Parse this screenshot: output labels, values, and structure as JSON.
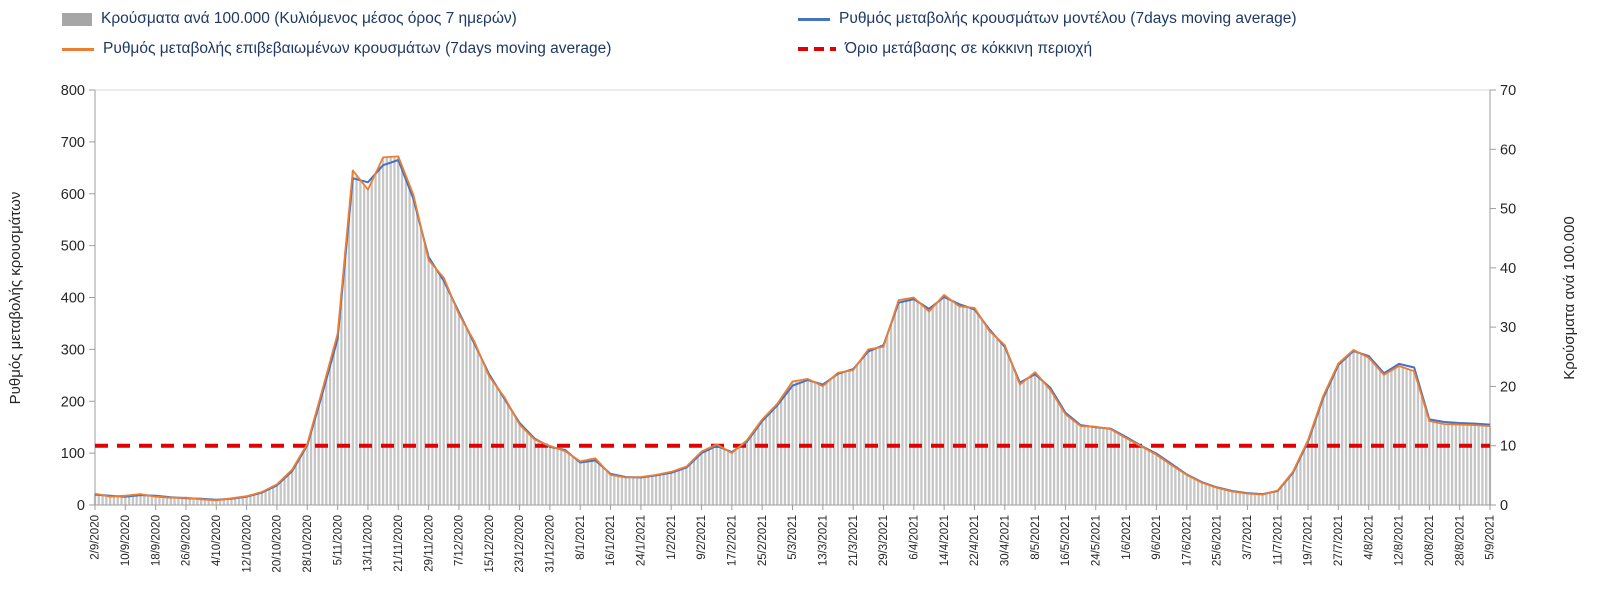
{
  "legend": {
    "items": [
      {
        "label": "Κρούσματα ανά 100.000 (Κυλιόμενος μέσος όρος 7 ημερών)",
        "type": "bar",
        "color": "#a6a6a6"
      },
      {
        "label": "Ρυθμός μεταβολής κρουσμάτων μοντέλου (7days moving average)",
        "type": "line",
        "color": "#4472C4"
      },
      {
        "label": "Ρυθμός μεταβολής επιβεβαιωμένων κρουσμάτων (7days moving average)",
        "type": "line",
        "color": "#ED7D31"
      },
      {
        "label": "Όριο μετάβασης σε κόκκινη περιοχή",
        "type": "dashed-line",
        "color": "#E00000"
      }
    ]
  },
  "chart_data": {
    "type": "combo-bar-line",
    "title": "",
    "left_axis": {
      "label": "Ρυθμός μεταβολής κρουσμάτων",
      "min": 0,
      "max": 800,
      "step": 100
    },
    "right_axis": {
      "label": "Κρούσματα ανά 100.000",
      "min": 0,
      "max": 70,
      "step": 10
    },
    "grid": false,
    "legend_position": "top",
    "x_tick_interval_days": 8,
    "total_days": 368,
    "sample_step_days": 4,
    "x_tick_labels": [
      "2/9/2020",
      "10/9/2020",
      "18/9/2020",
      "26/9/2020",
      "4/10/2020",
      "12/10/2020",
      "20/10/2020",
      "28/10/2020",
      "5/11/2020",
      "13/11/2020",
      "21/11/2020",
      "29/11/2020",
      "7/12/2020",
      "15/12/2020",
      "23/12/2020",
      "31/12/2020",
      "8/1/2021",
      "16/1/2021",
      "24/1/2021",
      "1/2/2021",
      "9/2/2021",
      "17/2/2021",
      "25/2/2021",
      "5/3/2021",
      "13/3/2021",
      "21/3/2021",
      "29/3/2021",
      "6/4/2021",
      "14/4/2021",
      "22/4/2021",
      "30/4/2021",
      "8/5/2021",
      "16/5/2021",
      "24/5/2021",
      "1/6/2021",
      "9/6/2021",
      "17/6/2021",
      "25/6/2021",
      "3/7/2021",
      "11/7/2021",
      "19/7/2021",
      "27/7/2021",
      "4/8/2021",
      "12/8/2021",
      "20/8/2021",
      "28/8/2021",
      "5/9/2021"
    ],
    "threshold": {
      "label": "Όριο μετάβασης σε κόκκινη περιοχή",
      "value_right_axis": 10,
      "value_left_axis": 114,
      "color": "#E00000"
    },
    "series": [
      {
        "name": "Κρούσματα ανά 100.000 (Κυλιόμενος μέσος όρος 7 ημερών)",
        "type": "bar",
        "axis": "right",
        "color": "#c6c6c6",
        "values": [
          1.9,
          1.4,
          1.6,
          1.8,
          1.4,
          1.2,
          1.2,
          1.0,
          0.8,
          1.1,
          1.5,
          2.2,
          3.5,
          6.0,
          10.3,
          19.4,
          28.9,
          56.4,
          53.2,
          58.6,
          58.8,
          52.3,
          41.3,
          38.3,
          32.2,
          27.7,
          21.7,
          18.2,
          13.6,
          11.0,
          10.0,
          9.1,
          7.4,
          7.9,
          5.1,
          4.6,
          4.7,
          5.1,
          5.6,
          6.5,
          9.0,
          10.2,
          8.8,
          10.9,
          14.4,
          17.1,
          20.8,
          21.3,
          20.0,
          22.3,
          22.8,
          26.3,
          26.7,
          34.6,
          35.0,
          32.6,
          35.4,
          33.5,
          33.3,
          29.3,
          27.0,
          20.3,
          22.4,
          19.4,
          15.3,
          13.3,
          13.2,
          12.8,
          11.3,
          9.9,
          8.5,
          6.7,
          5.1,
          3.8,
          2.9,
          2.3,
          1.9,
          1.8,
          2.5,
          5.6,
          10.9,
          18.4,
          23.9,
          26.2,
          24.9,
          22.0,
          23.5,
          22.6,
          14.2,
          13.7,
          13.6,
          13.5,
          13.3
        ]
      },
      {
        "name": "Ρυθμός μεταβολής κρουσμάτων μοντέλου (7days moving average)",
        "type": "line",
        "axis": "left",
        "color": "#4472C4",
        "values": [
          20,
          18,
          16,
          19,
          18,
          15,
          13,
          12,
          10,
          12,
          16,
          24,
          38,
          65,
          115,
          215,
          320,
          630,
          622,
          655,
          665,
          590,
          478,
          432,
          372,
          312,
          252,
          205,
          158,
          128,
          112,
          106,
          82,
          86,
          60,
          54,
          53,
          57,
          62,
          72,
          100,
          114,
          102,
          122,
          162,
          192,
          230,
          241,
          232,
          253,
          262,
          296,
          308,
          390,
          397,
          378,
          401,
          387,
          377,
          338,
          305,
          236,
          252,
          226,
          178,
          154,
          150,
          147,
          131,
          114,
          99,
          79,
          59,
          44,
          34,
          27,
          23,
          21,
          27,
          62,
          122,
          206,
          270,
          297,
          287,
          254,
          272,
          265,
          165,
          160,
          158,
          157,
          155
        ]
      },
      {
        "name": "Ρυθμός μεταβολής επιβεβαιωμένων κρουσμάτων (7days moving average)",
        "type": "line",
        "axis": "left",
        "color": "#ED7D31",
        "values": [
          22,
          16,
          18,
          21,
          16,
          14,
          14,
          11,
          9,
          13,
          17,
          25,
          40,
          68,
          118,
          222,
          330,
          645,
          608,
          670,
          672,
          598,
          472,
          438,
          368,
          316,
          248,
          208,
          155,
          126,
          114,
          104,
          84,
          90,
          58,
          53,
          54,
          58,
          64,
          74,
          103,
          117,
          100,
          125,
          165,
          195,
          238,
          243,
          229,
          255,
          260,
          300,
          305,
          395,
          400,
          373,
          405,
          383,
          380,
          335,
          308,
          232,
          256,
          222,
          175,
          152,
          151,
          146,
          129,
          113,
          97,
          77,
          58,
          43,
          33,
          26,
          22,
          20,
          28,
          64,
          125,
          210,
          273,
          299,
          284,
          251,
          268,
          258,
          162,
          156,
          155,
          154,
          152
        ]
      }
    ]
  }
}
